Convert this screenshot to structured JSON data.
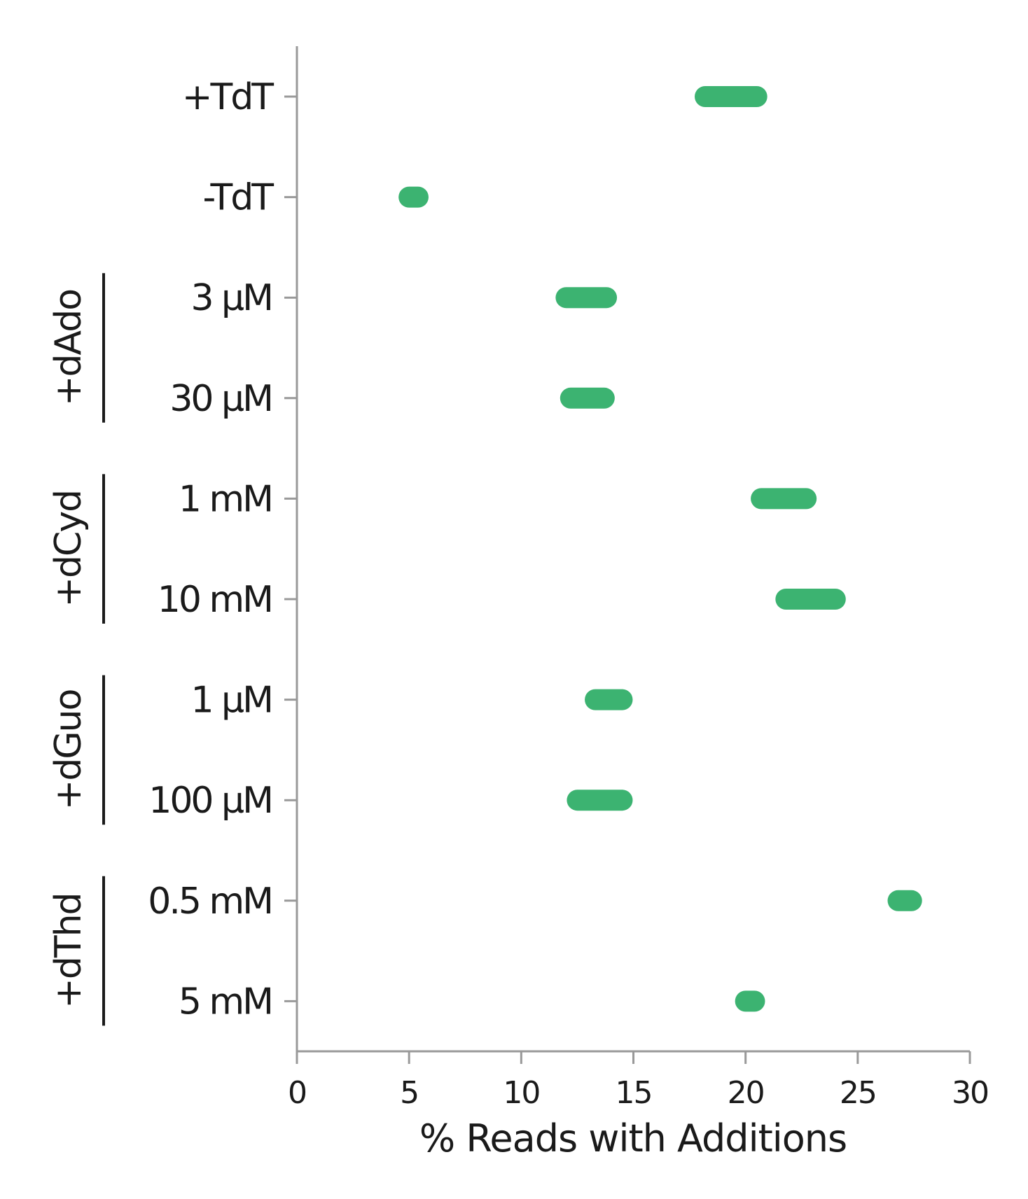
{
  "chart_data": {
    "type": "range",
    "xlabel": "% Reads with Additions",
    "xlim": [
      0,
      30
    ],
    "xticks": [
      0,
      5,
      10,
      15,
      20,
      25,
      30
    ],
    "color": "#3cb371",
    "grid": false,
    "categories": [
      {
        "label": "+TdT",
        "group": null,
        "low": 18.2,
        "high": 20.5
      },
      {
        "label": "-TdT",
        "group": null,
        "low": 5.0,
        "high": 5.4
      },
      {
        "label": "3 μM",
        "group": "+dAdo",
        "low": 12.0,
        "high": 13.8
      },
      {
        "label": "30 μM",
        "group": "+dAdo",
        "low": 12.2,
        "high": 13.7
      },
      {
        "label": "1 mM",
        "group": "+dCyd",
        "low": 20.7,
        "high": 22.7
      },
      {
        "label": "10 mM",
        "group": "+dCyd",
        "low": 21.8,
        "high": 24.0
      },
      {
        "label": "1 μM",
        "group": "+dGuo",
        "low": 13.3,
        "high": 14.5
      },
      {
        "label": "100 μM",
        "group": "+dGuo",
        "low": 12.5,
        "high": 14.5
      },
      {
        "label": "0.5 mM",
        "group": "+dThd",
        "low": 26.8,
        "high": 27.4
      },
      {
        "label": "5 mM",
        "group": "+dThd",
        "low": 20.0,
        "high": 20.4
      }
    ],
    "groups": [
      "+dAdo",
      "+dCyd",
      "+dGuo",
      "+dThd"
    ]
  }
}
